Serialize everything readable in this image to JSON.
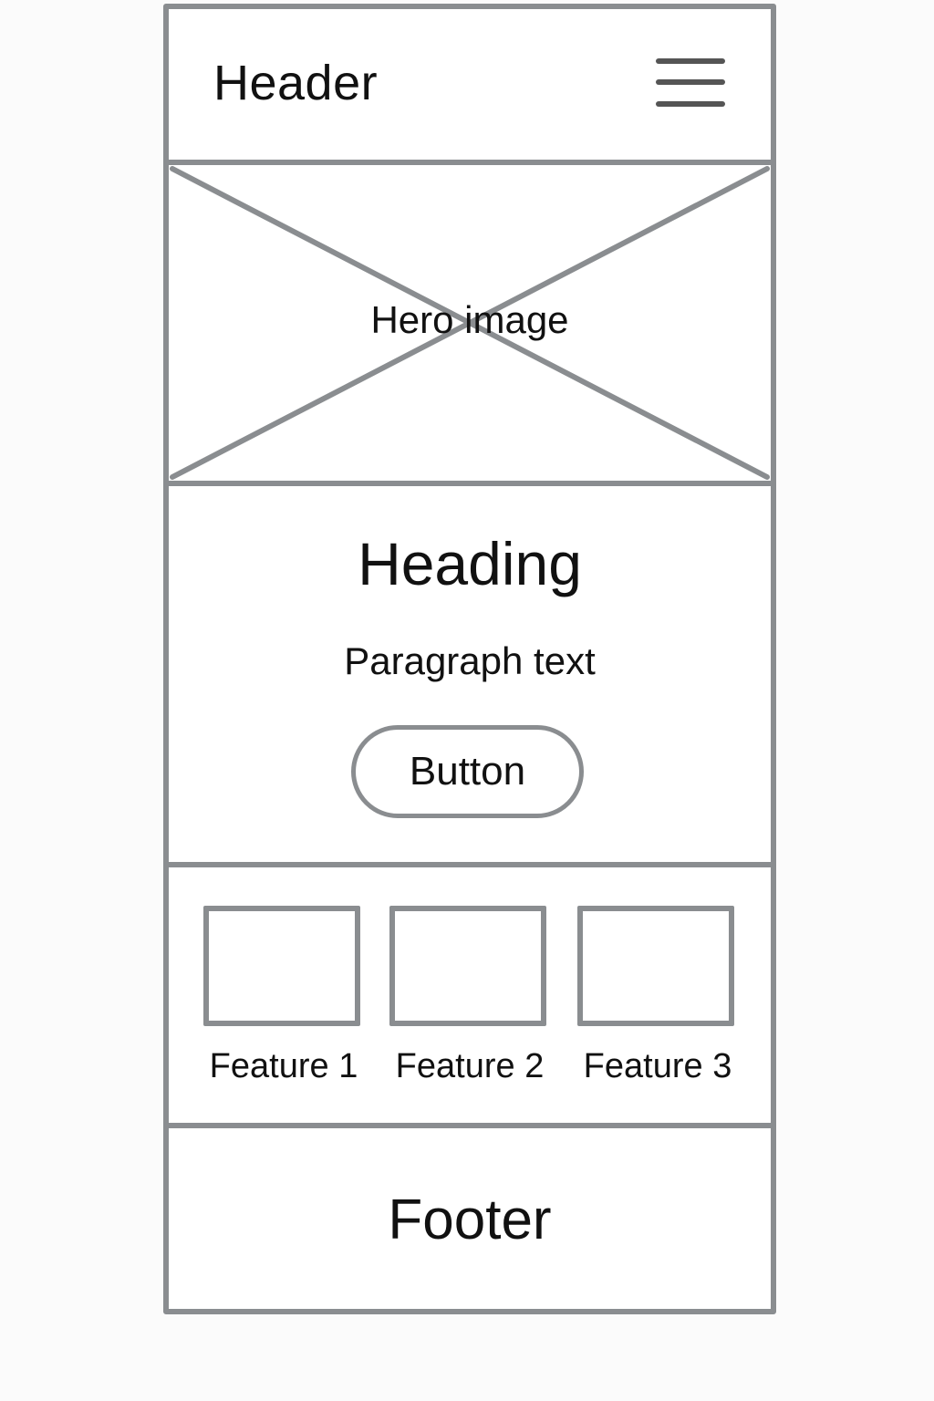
{
  "header": {
    "title": "Header",
    "menu_icon": "hamburger-menu-icon"
  },
  "hero": {
    "label": "Hero image"
  },
  "content": {
    "heading": "Heading",
    "paragraph": "Paragraph text",
    "button_label": "Button"
  },
  "features": [
    {
      "label": "Feature 1"
    },
    {
      "label": "Feature 2"
    },
    {
      "label": "Feature 3"
    }
  ],
  "footer": {
    "title": "Footer"
  },
  "colors": {
    "line": "#8a8d90",
    "text": "#111111",
    "menu": "#555555"
  }
}
